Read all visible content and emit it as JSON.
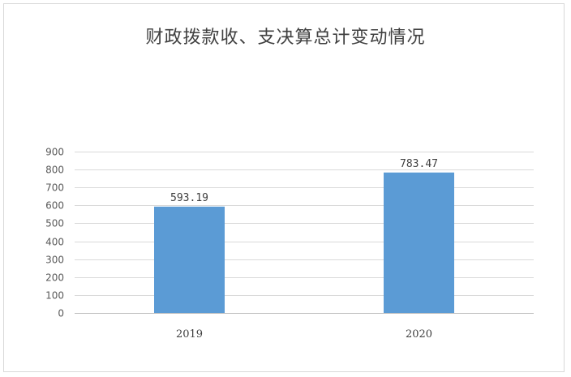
{
  "chart_data": {
    "type": "bar",
    "title": "财政拨款收、支决算总计变动情况",
    "categories": [
      "2019",
      "2020"
    ],
    "values": [
      593.19,
      783.47
    ],
    "value_labels": [
      "593.19",
      "783.47"
    ],
    "xlabel": "",
    "ylabel": "",
    "ylim": [
      0,
      900
    ],
    "yticks": [
      0,
      100,
      200,
      300,
      400,
      500,
      600,
      700,
      800,
      900
    ],
    "grid": true,
    "legend": "none",
    "bar_color": "#5b9bd5",
    "grid_color": "#d9d9d9",
    "axis_color": "#bfbfbf"
  }
}
